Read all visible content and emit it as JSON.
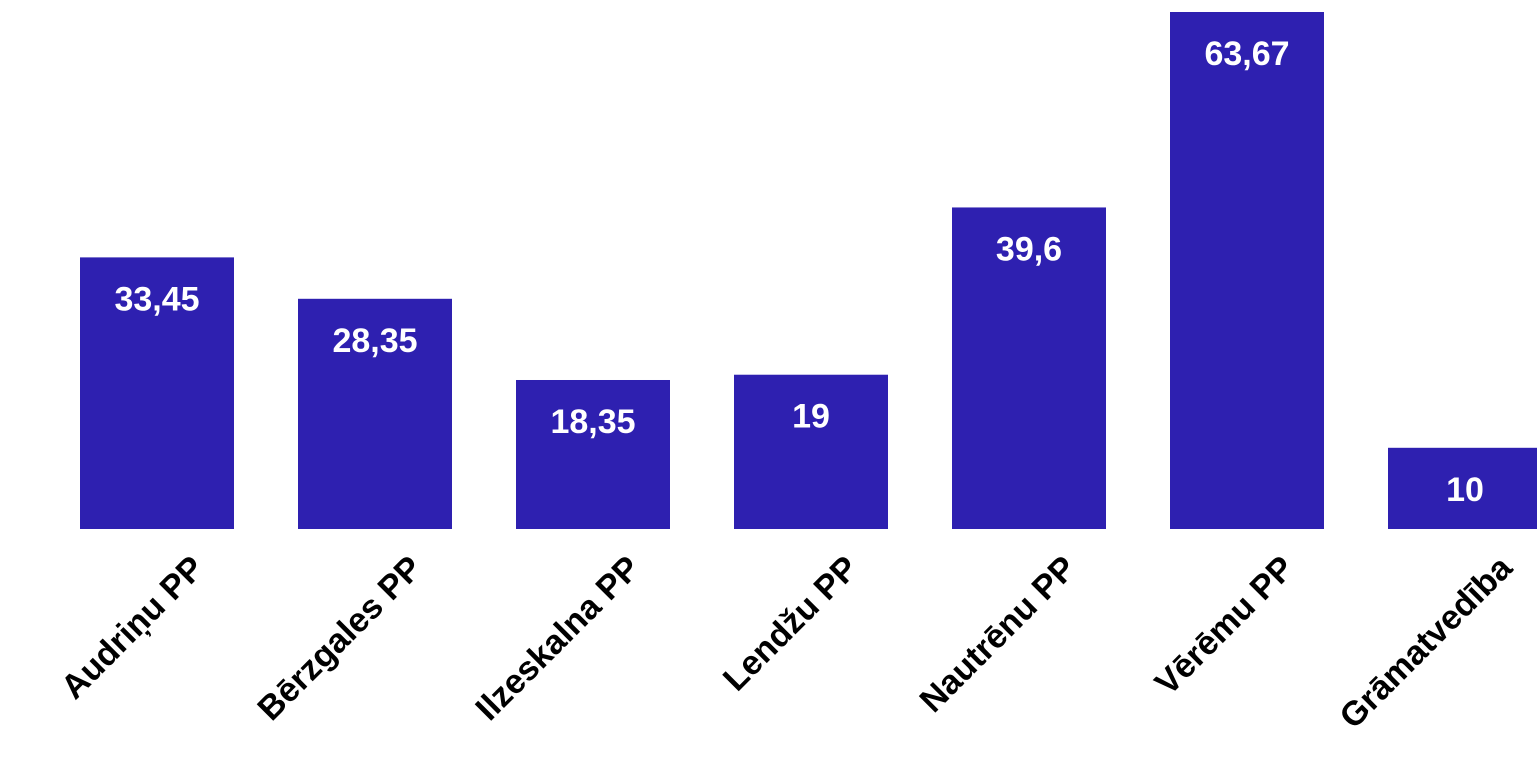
{
  "chart_data": {
    "type": "bar",
    "categories": [
      "Audriņu PP",
      "Bērzgales PP",
      "Ilzeskalna PP",
      "Lendžu PP",
      "Nautrēnu PP",
      "Vērēmu PP",
      "Grāmatvedība"
    ],
    "values": [
      33.45,
      28.35,
      18.35,
      19,
      39.6,
      63.67,
      10
    ],
    "value_labels": [
      "33,45",
      "28,35",
      "18,35",
      "19",
      "39,6",
      "63,67",
      "10"
    ],
    "title": "",
    "xlabel": "",
    "ylabel": "",
    "ylim": [
      0,
      63.67
    ],
    "grid": false,
    "legend": "none",
    "bar_color": "#2e20b0",
    "label_color": "#ffffff"
  }
}
